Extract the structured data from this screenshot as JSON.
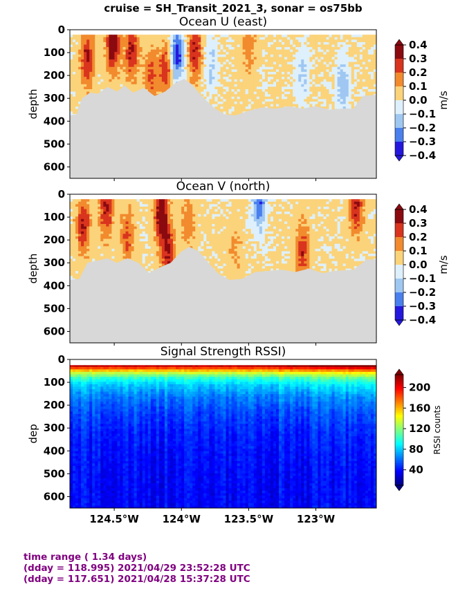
{
  "suptitle": "cruise = SH_Transit_2021_3,  sonar = os75bb",
  "colors": {
    "land": "#d8d8d8",
    "footer_text": "#800080",
    "text": "#000000"
  },
  "chart_data": [
    {
      "type": "heatmap",
      "title": "Ocean U (east)",
      "xlabel": "",
      "ylabel": "depth",
      "xlim": [
        -124.83,
        -122.55
      ],
      "ylim": [
        650,
        0
      ],
      "xticks": [
        -124.5,
        -124.0,
        -123.5,
        -123.0
      ],
      "xtick_labels": [
        "124.5°W",
        "124°W",
        "123.5°W",
        "123°W"
      ],
      "xtick_labels_shown": false,
      "yticks": [
        0,
        100,
        200,
        300,
        400,
        500,
        600
      ],
      "ytick_labels": [
        "0",
        "100",
        "200",
        "300",
        "400",
        "500",
        "600"
      ],
      "colorbar": {
        "label": "m/s",
        "levels": [
          0.4,
          0.3,
          0.2,
          0.1,
          0.0,
          -0.1,
          -0.2,
          -0.3,
          -0.4
        ],
        "level_labels": [
          "0.4",
          "0.3",
          "0.2",
          "0.1",
          "0.0",
          "−0.1",
          "−0.2",
          "−0.3",
          "−0.4"
        ],
        "colors": [
          "#8b0a10",
          "#d9341e",
          "#f28a2e",
          "#fbd37a",
          "#fdf3c8",
          "#def0fb",
          "#9fc7f2",
          "#4a7fee",
          "#2418de"
        ]
      },
      "bottom_depth": [
        [
          -124.83,
          375
        ],
        [
          -124.78,
          370
        ],
        [
          -124.74,
          300
        ],
        [
          -124.68,
          275
        ],
        [
          -124.62,
          280
        ],
        [
          -124.55,
          250
        ],
        [
          -124.48,
          270
        ],
        [
          -124.42,
          245
        ],
        [
          -124.36,
          275
        ],
        [
          -124.28,
          255
        ],
        [
          -124.2,
          290
        ],
        [
          -124.12,
          270
        ],
        [
          -124.05,
          235
        ],
        [
          -123.98,
          215
        ],
        [
          -123.92,
          240
        ],
        [
          -123.85,
          290
        ],
        [
          -123.76,
          340
        ],
        [
          -123.68,
          370
        ],
        [
          -123.6,
          375
        ],
        [
          -123.5,
          355
        ],
        [
          -123.4,
          340
        ],
        [
          -123.3,
          345
        ],
        [
          -123.2,
          335
        ],
        [
          -123.1,
          345
        ],
        [
          -123.0,
          335
        ],
        [
          -122.9,
          350
        ],
        [
          -122.8,
          345
        ],
        [
          -122.72,
          345
        ],
        [
          -122.65,
          290
        ],
        [
          -122.55,
          285
        ]
      ],
      "features": [
        {
          "x": -124.7,
          "depth": 130,
          "value": 0.3
        },
        {
          "x": -124.51,
          "depth": 60,
          "value": 0.4
        },
        {
          "x": -124.37,
          "depth": 90,
          "value": 0.3
        },
        {
          "x": -124.23,
          "depth": 200,
          "value": 0.2
        },
        {
          "x": -124.12,
          "depth": 180,
          "value": 0.25
        },
        {
          "x": -124.03,
          "depth": 110,
          "value": -0.35
        },
        {
          "x": -123.9,
          "depth": 90,
          "value": 0.3
        },
        {
          "x": -123.78,
          "depth": 150,
          "value": -0.15
        },
        {
          "x": -123.5,
          "depth": 80,
          "value": 0.15
        },
        {
          "x": -123.1,
          "depth": 200,
          "value": -0.15
        },
        {
          "x": -122.8,
          "depth": 250,
          "value": -0.2
        }
      ]
    },
    {
      "type": "heatmap",
      "title": "Ocean V (north)",
      "xlabel": "",
      "ylabel": "depth",
      "xlim": [
        -124.83,
        -122.55
      ],
      "ylim": [
        650,
        0
      ],
      "xticks": [
        -124.5,
        -124.0,
        -123.5,
        -123.0
      ],
      "xtick_labels": [
        "124.5°W",
        "124°W",
        "123.5°W",
        "123°W"
      ],
      "xtick_labels_shown": false,
      "yticks": [
        0,
        100,
        200,
        300,
        400,
        500,
        600
      ],
      "ytick_labels": [
        "0",
        "100",
        "200",
        "300",
        "400",
        "500",
        "600"
      ],
      "colorbar": {
        "label": "m/s",
        "levels": [
          0.4,
          0.3,
          0.2,
          0.1,
          0.0,
          -0.1,
          -0.2,
          -0.3,
          -0.4
        ],
        "level_labels": [
          "0.4",
          "0.3",
          "0.2",
          "0.1",
          "0.0",
          "−0.1",
          "−0.2",
          "−0.3",
          "−0.4"
        ],
        "colors": [
          "#8b0a10",
          "#d9341e",
          "#f28a2e",
          "#fbd37a",
          "#fdf3c8",
          "#def0fb",
          "#9fc7f2",
          "#4a7fee",
          "#2418de"
        ]
      },
      "bottom_depth": [
        [
          -124.83,
          375
        ],
        [
          -124.76,
          370
        ],
        [
          -124.7,
          300
        ],
        [
          -124.62,
          290
        ],
        [
          -124.55,
          280
        ],
        [
          -124.48,
          300
        ],
        [
          -124.4,
          280
        ],
        [
          -124.32,
          300
        ],
        [
          -124.24,
          345
        ],
        [
          -124.16,
          320
        ],
        [
          -124.08,
          300
        ],
        [
          -124.0,
          250
        ],
        [
          -123.94,
          230
        ],
        [
          -123.87,
          250
        ],
        [
          -123.8,
          300
        ],
        [
          -123.72,
          350
        ],
        [
          -123.64,
          375
        ],
        [
          -123.55,
          370
        ],
        [
          -123.45,
          340
        ],
        [
          -123.35,
          335
        ],
        [
          -123.25,
          330
        ],
        [
          -123.15,
          340
        ],
        [
          -123.05,
          325
        ],
        [
          -122.95,
          345
        ],
        [
          -122.85,
          335
        ],
        [
          -122.72,
          330
        ],
        [
          -122.62,
          285
        ],
        [
          -122.55,
          285
        ]
      ],
      "features": [
        {
          "x": -124.73,
          "depth": 140,
          "value": 0.3
        },
        {
          "x": -124.56,
          "depth": 60,
          "value": 0.3
        },
        {
          "x": -124.4,
          "depth": 180,
          "value": 0.2
        },
        {
          "x": -124.15,
          "depth": 80,
          "value": 0.4
        },
        {
          "x": -124.1,
          "depth": 250,
          "value": 0.3
        },
        {
          "x": -123.95,
          "depth": 120,
          "value": 0.15
        },
        {
          "x": -123.6,
          "depth": 230,
          "value": 0.1
        },
        {
          "x": -123.42,
          "depth": 40,
          "value": -0.3
        },
        {
          "x": -123.1,
          "depth": 250,
          "value": 0.25
        },
        {
          "x": -122.7,
          "depth": 50,
          "value": 0.3
        }
      ]
    },
    {
      "type": "heatmap",
      "title": "Signal Strength RSSI)",
      "xlabel": "",
      "ylabel": "dep",
      "xlim": [
        -124.83,
        -122.55
      ],
      "ylim": [
        650,
        0
      ],
      "xticks": [
        -124.5,
        -124.0,
        -123.5,
        -123.0
      ],
      "xtick_labels": [
        "124.5°W",
        "124°W",
        "123.5°W",
        "123°W"
      ],
      "xtick_labels_shown": true,
      "yticks": [
        0,
        100,
        200,
        300,
        400,
        500,
        600
      ],
      "ytick_labels": [
        "0",
        "100",
        "200",
        "300",
        "400",
        "500",
        "600"
      ],
      "colorbar": {
        "label": "RSSI counts",
        "range": [
          10,
          225
        ],
        "ticks": [
          40,
          80,
          120,
          160,
          200
        ],
        "tick_labels": [
          "40",
          "80",
          "120",
          "160",
          "200"
        ],
        "colormap": "jet"
      },
      "first_bin_depth": 25,
      "profile": [
        [
          25,
          215
        ],
        [
          35,
          190
        ],
        [
          45,
          165
        ],
        [
          60,
          130
        ],
        [
          80,
          100
        ],
        [
          110,
          78
        ],
        [
          160,
          60
        ],
        [
          230,
          48
        ],
        [
          320,
          40
        ],
        [
          420,
          36
        ],
        [
          520,
          34
        ],
        [
          650,
          33
        ]
      ]
    }
  ],
  "footer": {
    "line1": "time range ( 1.34 days)",
    "line2": "(dday = 118.995) 2021/04/29 23:52:28 UTC",
    "line3": "(dday = 117.651) 2021/04/28 15:37:28 UTC"
  }
}
